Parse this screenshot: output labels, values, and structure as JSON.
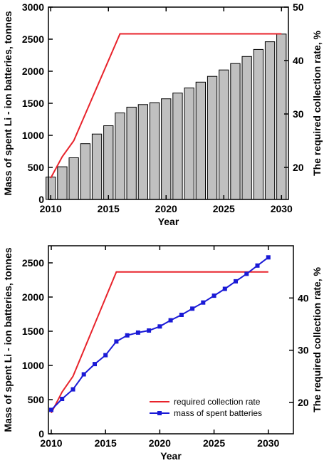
{
  "chart_data": [
    {
      "type": "bar",
      "x": [
        2010,
        2011,
        2012,
        2013,
        2014,
        2015,
        2016,
        2017,
        2018,
        2019,
        2020,
        2021,
        2022,
        2023,
        2024,
        2025,
        2026,
        2027,
        2028,
        2029,
        2030
      ],
      "series": [
        {
          "values": [
            350,
            510,
            650,
            870,
            1020,
            1150,
            1350,
            1440,
            1480,
            1510,
            1570,
            1660,
            1740,
            1830,
            1920,
            2020,
            2120,
            2230,
            2340,
            2460,
            2580
          ],
          "color": "#c0c0c0",
          "axis": "left"
        },
        {
          "type": "line",
          "x": [
            2010,
            2011,
            2012,
            2016,
            2030
          ],
          "values": [
            18,
            22,
            25,
            45,
            45
          ],
          "color": "#e8232b",
          "axis": "right"
        }
      ],
      "xlabel": "Year",
      "ylabel": "Mass of spent Li - ion batteries, tonnes",
      "y2label": "The required collection rate, %",
      "xticks": [
        2010,
        2015,
        2020,
        2025,
        2030
      ],
      "xlim": [
        2009.8,
        2030.6
      ],
      "yticks": [
        0,
        500,
        1000,
        1500,
        2000,
        2500,
        3000
      ],
      "ylim": [
        0,
        3000
      ],
      "y2ticks": [
        20,
        30,
        40,
        50
      ],
      "y2lim": [
        14,
        50
      ],
      "grid": false,
      "legend": "none"
    },
    {
      "type": "line",
      "x": [
        2010,
        2011,
        2012,
        2013,
        2014,
        2015,
        2016,
        2017,
        2018,
        2019,
        2020,
        2021,
        2022,
        2023,
        2024,
        2025,
        2026,
        2027,
        2028,
        2029,
        2030
      ],
      "series": [
        {
          "name": "required collection rate",
          "x": [
            2010,
            2011,
            2012,
            2016,
            2030
          ],
          "values": [
            18,
            22,
            25,
            45,
            45
          ],
          "color": "#e8232b",
          "axis": "right"
        },
        {
          "name": "mass of spent batteries",
          "values": [
            350,
            510,
            650,
            870,
            1020,
            1150,
            1350,
            1440,
            1480,
            1510,
            1570,
            1660,
            1740,
            1830,
            1920,
            2020,
            2120,
            2230,
            2340,
            2460,
            2580
          ],
          "color": "#1a1ad6",
          "marker": "square",
          "axis": "left"
        }
      ],
      "xlabel": "Year",
      "ylabel": "Mass of spent Li - ion batteries, tonnes",
      "y2label": "The required collection rate, %",
      "xticks": [
        2010,
        2015,
        2020,
        2025,
        2030
      ],
      "xlim": [
        2010,
        2031
      ],
      "yticks": [
        0,
        500,
        1000,
        1500,
        2000,
        2500
      ],
      "ylim": [
        0,
        2750
      ],
      "y2ticks": [
        20,
        30,
        40
      ],
      "y2lim": [
        14,
        50
      ],
      "grid": false,
      "legend": "bottom-right"
    }
  ]
}
